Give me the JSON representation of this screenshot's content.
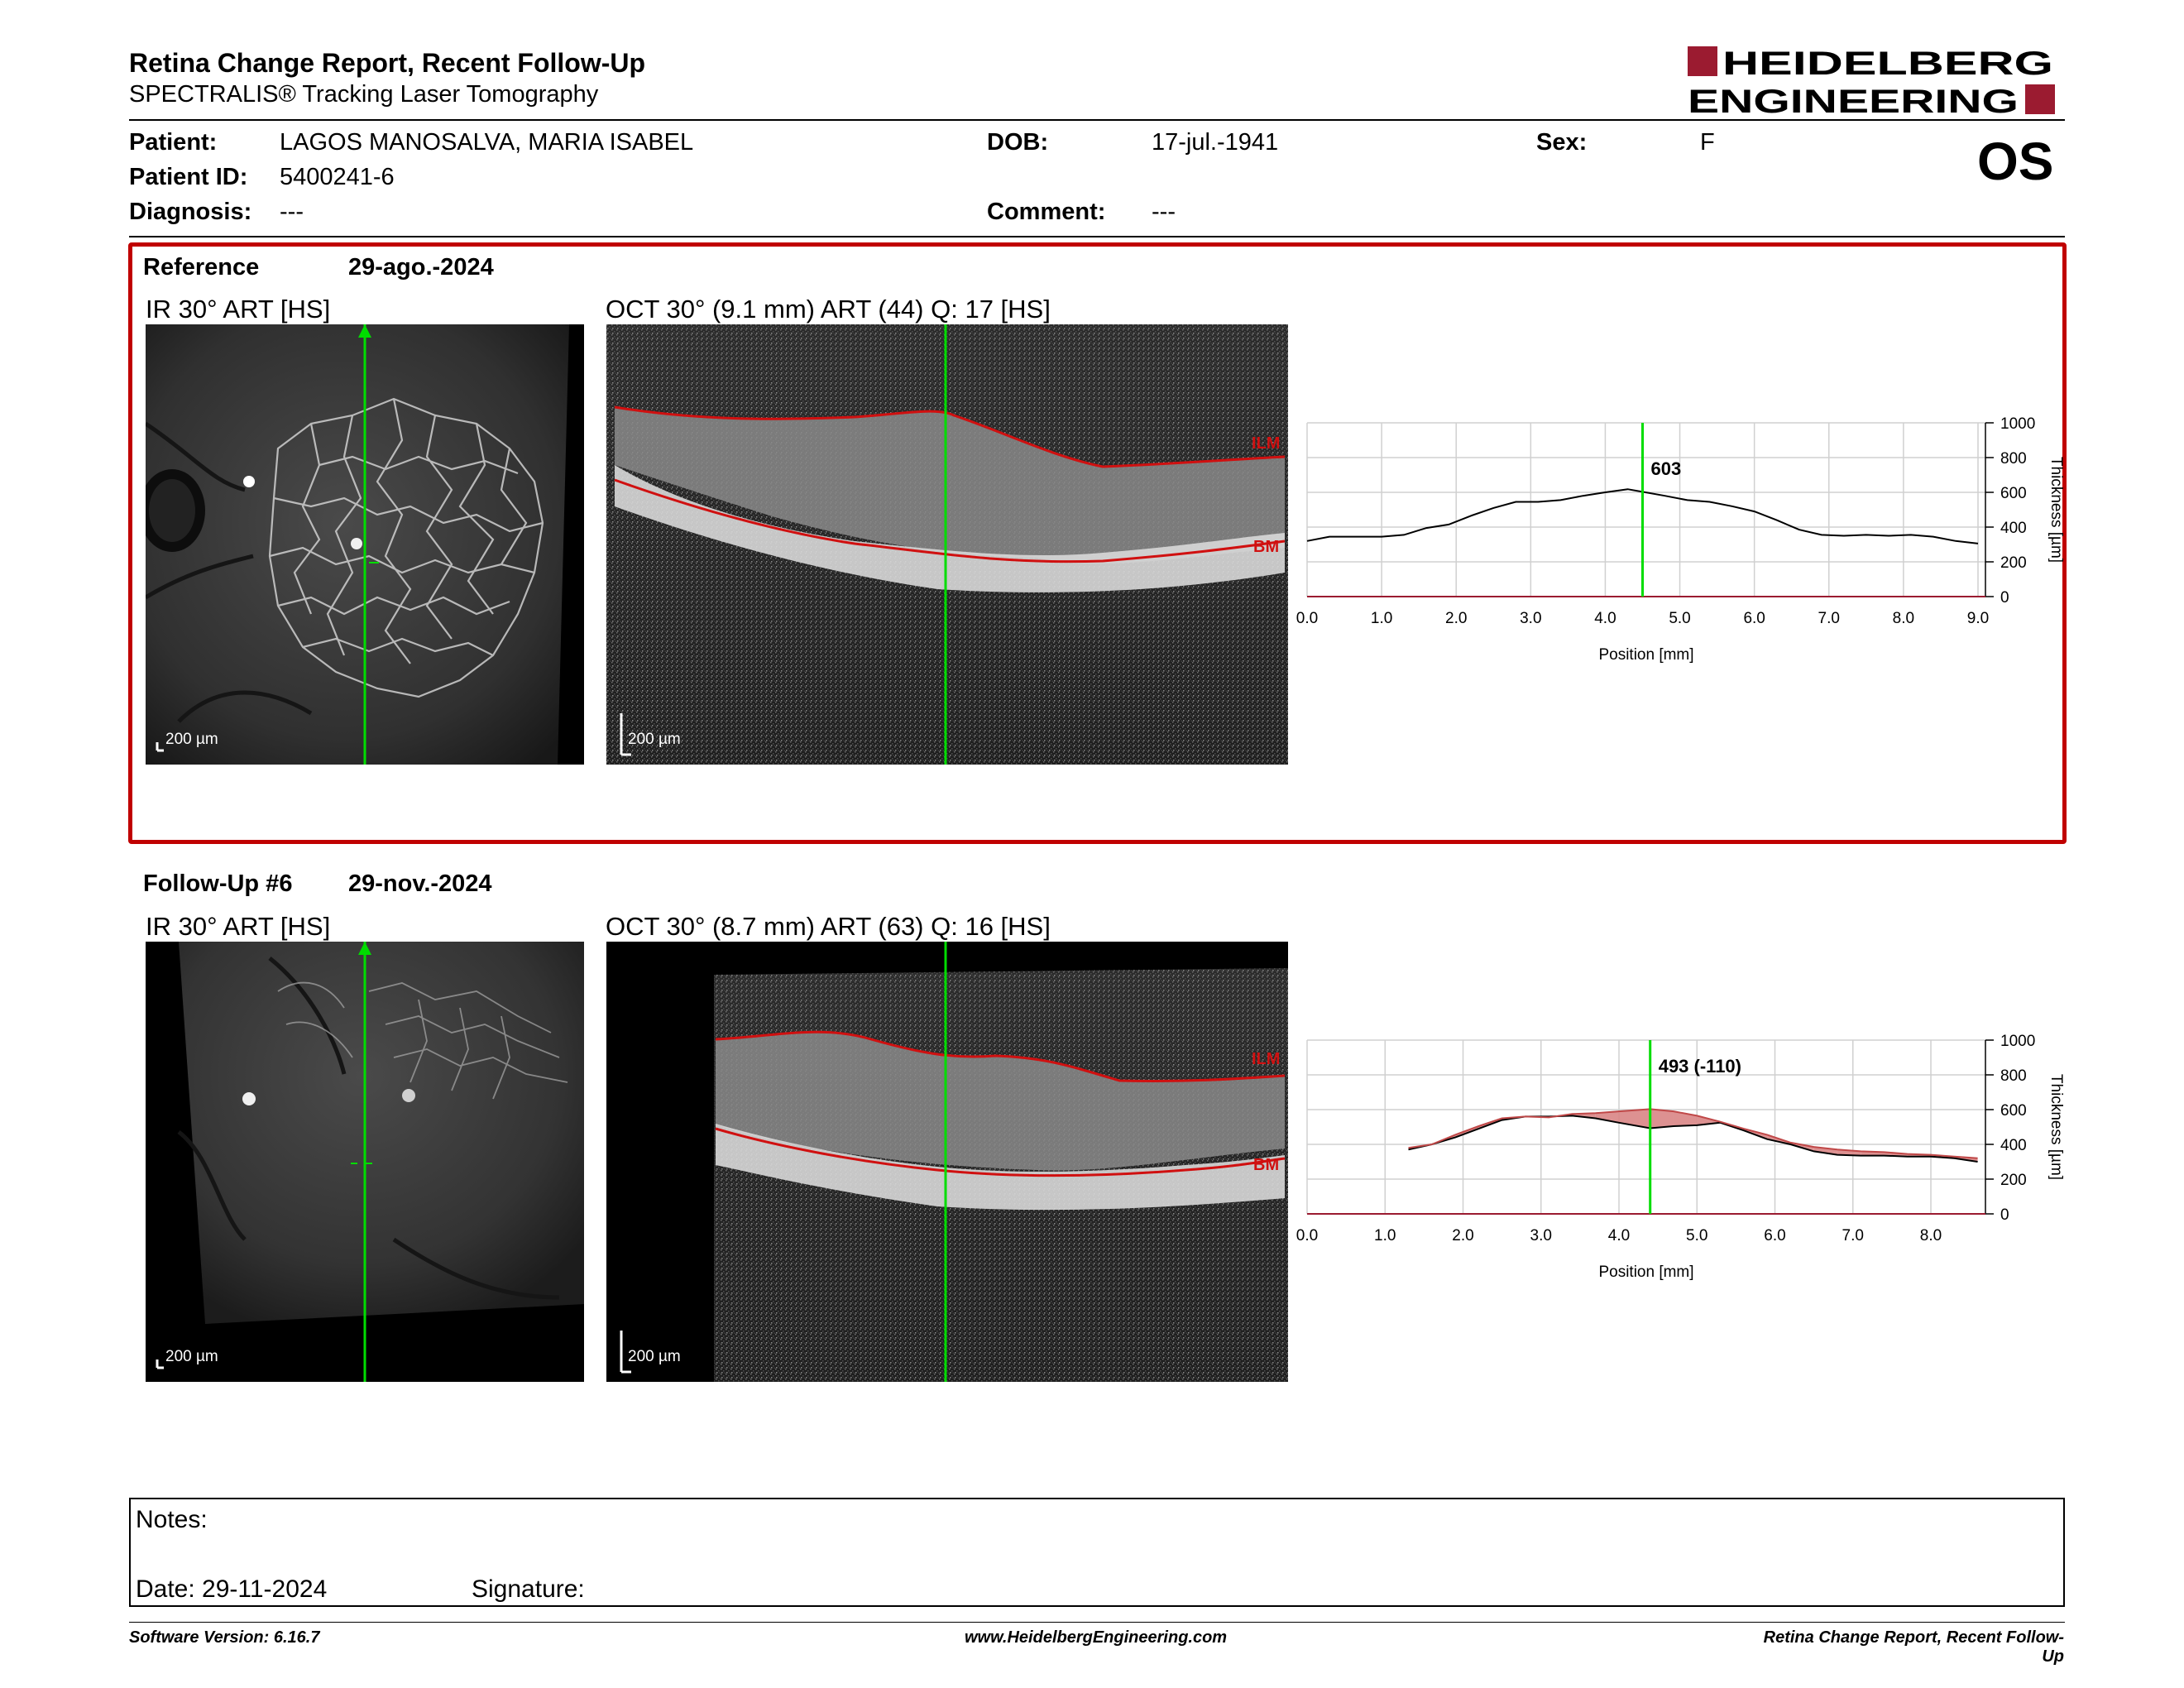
{
  "header": {
    "title": "Retina Change Report, Recent Follow-Up",
    "subtitle": "SPECTRALIS® Tracking Laser Tomography",
    "logo_line1": "HEIDELBERG",
    "logo_line2": "ENGINEERING",
    "eye": "OS"
  },
  "patient": {
    "name_label": "Patient:",
    "name": "LAGOS MANOSALVA, MARIA ISABEL",
    "id_label": "Patient ID:",
    "id": "5400241-6",
    "diagnosis_label": "Diagnosis:",
    "diagnosis": "---",
    "dob_label": "DOB:",
    "dob": "17-jul.-1941",
    "comment_label": "Comment:",
    "comment": "---",
    "sex_label": "Sex:",
    "sex": "F"
  },
  "reference": {
    "label": "Reference",
    "date": "29-ago.-2024",
    "ir_label": "IR 30° ART [HS]",
    "oct_label": "OCT 30° (9.1 mm) ART (44) Q: 17 [HS]",
    "scale_ir": "200 µm",
    "scale_oct": "200 µm",
    "ilm": "ILM",
    "bm": "BM"
  },
  "followup": {
    "label": "Follow-Up #6",
    "date": "29-nov.-2024",
    "ir_label": "IR 30° ART [HS]",
    "oct_label": "OCT 30° (8.7 mm) ART (63) Q: 16 [HS]",
    "scale_ir": "200 µm",
    "scale_oct": "200 µm",
    "ilm": "ILM",
    "bm": "BM"
  },
  "chart_data": [
    {
      "type": "line",
      "xlabel": "Position [mm]",
      "ylabel": "Thickness [µm]",
      "xlim": [
        0,
        9.1
      ],
      "ylim": [
        0,
        1000
      ],
      "xticks": [
        "0.0",
        "1.0",
        "2.0",
        "3.0",
        "4.0",
        "5.0",
        "6.0",
        "7.0",
        "8.0",
        "9.0"
      ],
      "yticks": [
        "0",
        "200",
        "400",
        "600",
        "800",
        "1000"
      ],
      "cursor_x": 4.5,
      "cursor_label": "603",
      "series": [
        {
          "x": [
            0.0,
            0.3,
            0.6,
            1.0,
            1.3,
            1.6,
            1.9,
            2.2,
            2.5,
            2.8,
            3.1,
            3.4,
            3.7,
            4.0,
            4.3,
            4.5,
            4.8,
            5.1,
            5.4,
            5.7,
            6.0,
            6.3,
            6.6,
            6.9,
            7.2,
            7.5,
            7.8,
            8.1,
            8.4,
            8.7,
            9.0
          ],
          "y": [
            320,
            345,
            345,
            345,
            355,
            395,
            415,
            465,
            510,
            545,
            545,
            555,
            580,
            600,
            618,
            603,
            580,
            555,
            545,
            520,
            490,
            440,
            385,
            355,
            350,
            355,
            350,
            355,
            345,
            320,
            305
          ]
        }
      ]
    },
    {
      "type": "line",
      "xlabel": "Position [mm]",
      "ylabel": "Thickness [µm]",
      "xlim": [
        0,
        8.7
      ],
      "ylim": [
        0,
        1000
      ],
      "xticks": [
        "0.0",
        "1.0",
        "2.0",
        "3.0",
        "4.0",
        "5.0",
        "6.0",
        "7.0",
        "8.0"
      ],
      "yticks": [
        "0",
        "200",
        "400",
        "600",
        "800",
        "1000"
      ],
      "cursor_x": 4.4,
      "cursor_label": "493 (-110)",
      "series": [
        {
          "x": [
            1.3,
            1.6,
            1.9,
            2.2,
            2.5,
            2.8,
            3.1,
            3.4,
            3.7,
            4.0,
            4.4,
            4.7,
            5.0,
            5.3,
            5.6,
            5.9,
            6.2,
            6.5,
            6.8,
            7.1,
            7.4,
            7.7,
            8.0,
            8.3,
            8.6
          ],
          "y": [
            370,
            400,
            440,
            490,
            540,
            560,
            560,
            565,
            550,
            525,
            493,
            505,
            510,
            525,
            480,
            430,
            400,
            360,
            340,
            335,
            335,
            330,
            330,
            320,
            300
          ]
        },
        {
          "x": [
            1.3,
            1.6,
            1.9,
            2.2,
            2.5,
            2.8,
            3.1,
            3.4,
            3.7,
            4.0,
            4.4,
            4.7,
            5.0,
            5.3,
            5.6,
            5.9,
            6.2,
            6.5,
            6.8,
            7.1,
            7.4,
            7.7,
            8.0,
            8.3,
            8.6
          ],
          "y": [
            380,
            400,
            455,
            505,
            550,
            560,
            555,
            575,
            580,
            590,
            603,
            590,
            565,
            530,
            490,
            455,
            410,
            385,
            370,
            360,
            355,
            345,
            340,
            330,
            320
          ]
        }
      ]
    }
  ],
  "notes": {
    "notes_label": "Notes:",
    "date_label": "Date: 29-11-2024",
    "signature_label": "Signature:"
  },
  "footer": {
    "left": "Software Version: 6.16.7",
    "center": "www.HeidelbergEngineering.com",
    "right": "Retina Change Report, Recent Follow-Up"
  },
  "colors": {
    "accent": "#c00000",
    "cursor": "#00dd00",
    "layer": "#d01010",
    "increase_fill": "#7fe07f",
    "decrease_fill": "#d98585"
  }
}
